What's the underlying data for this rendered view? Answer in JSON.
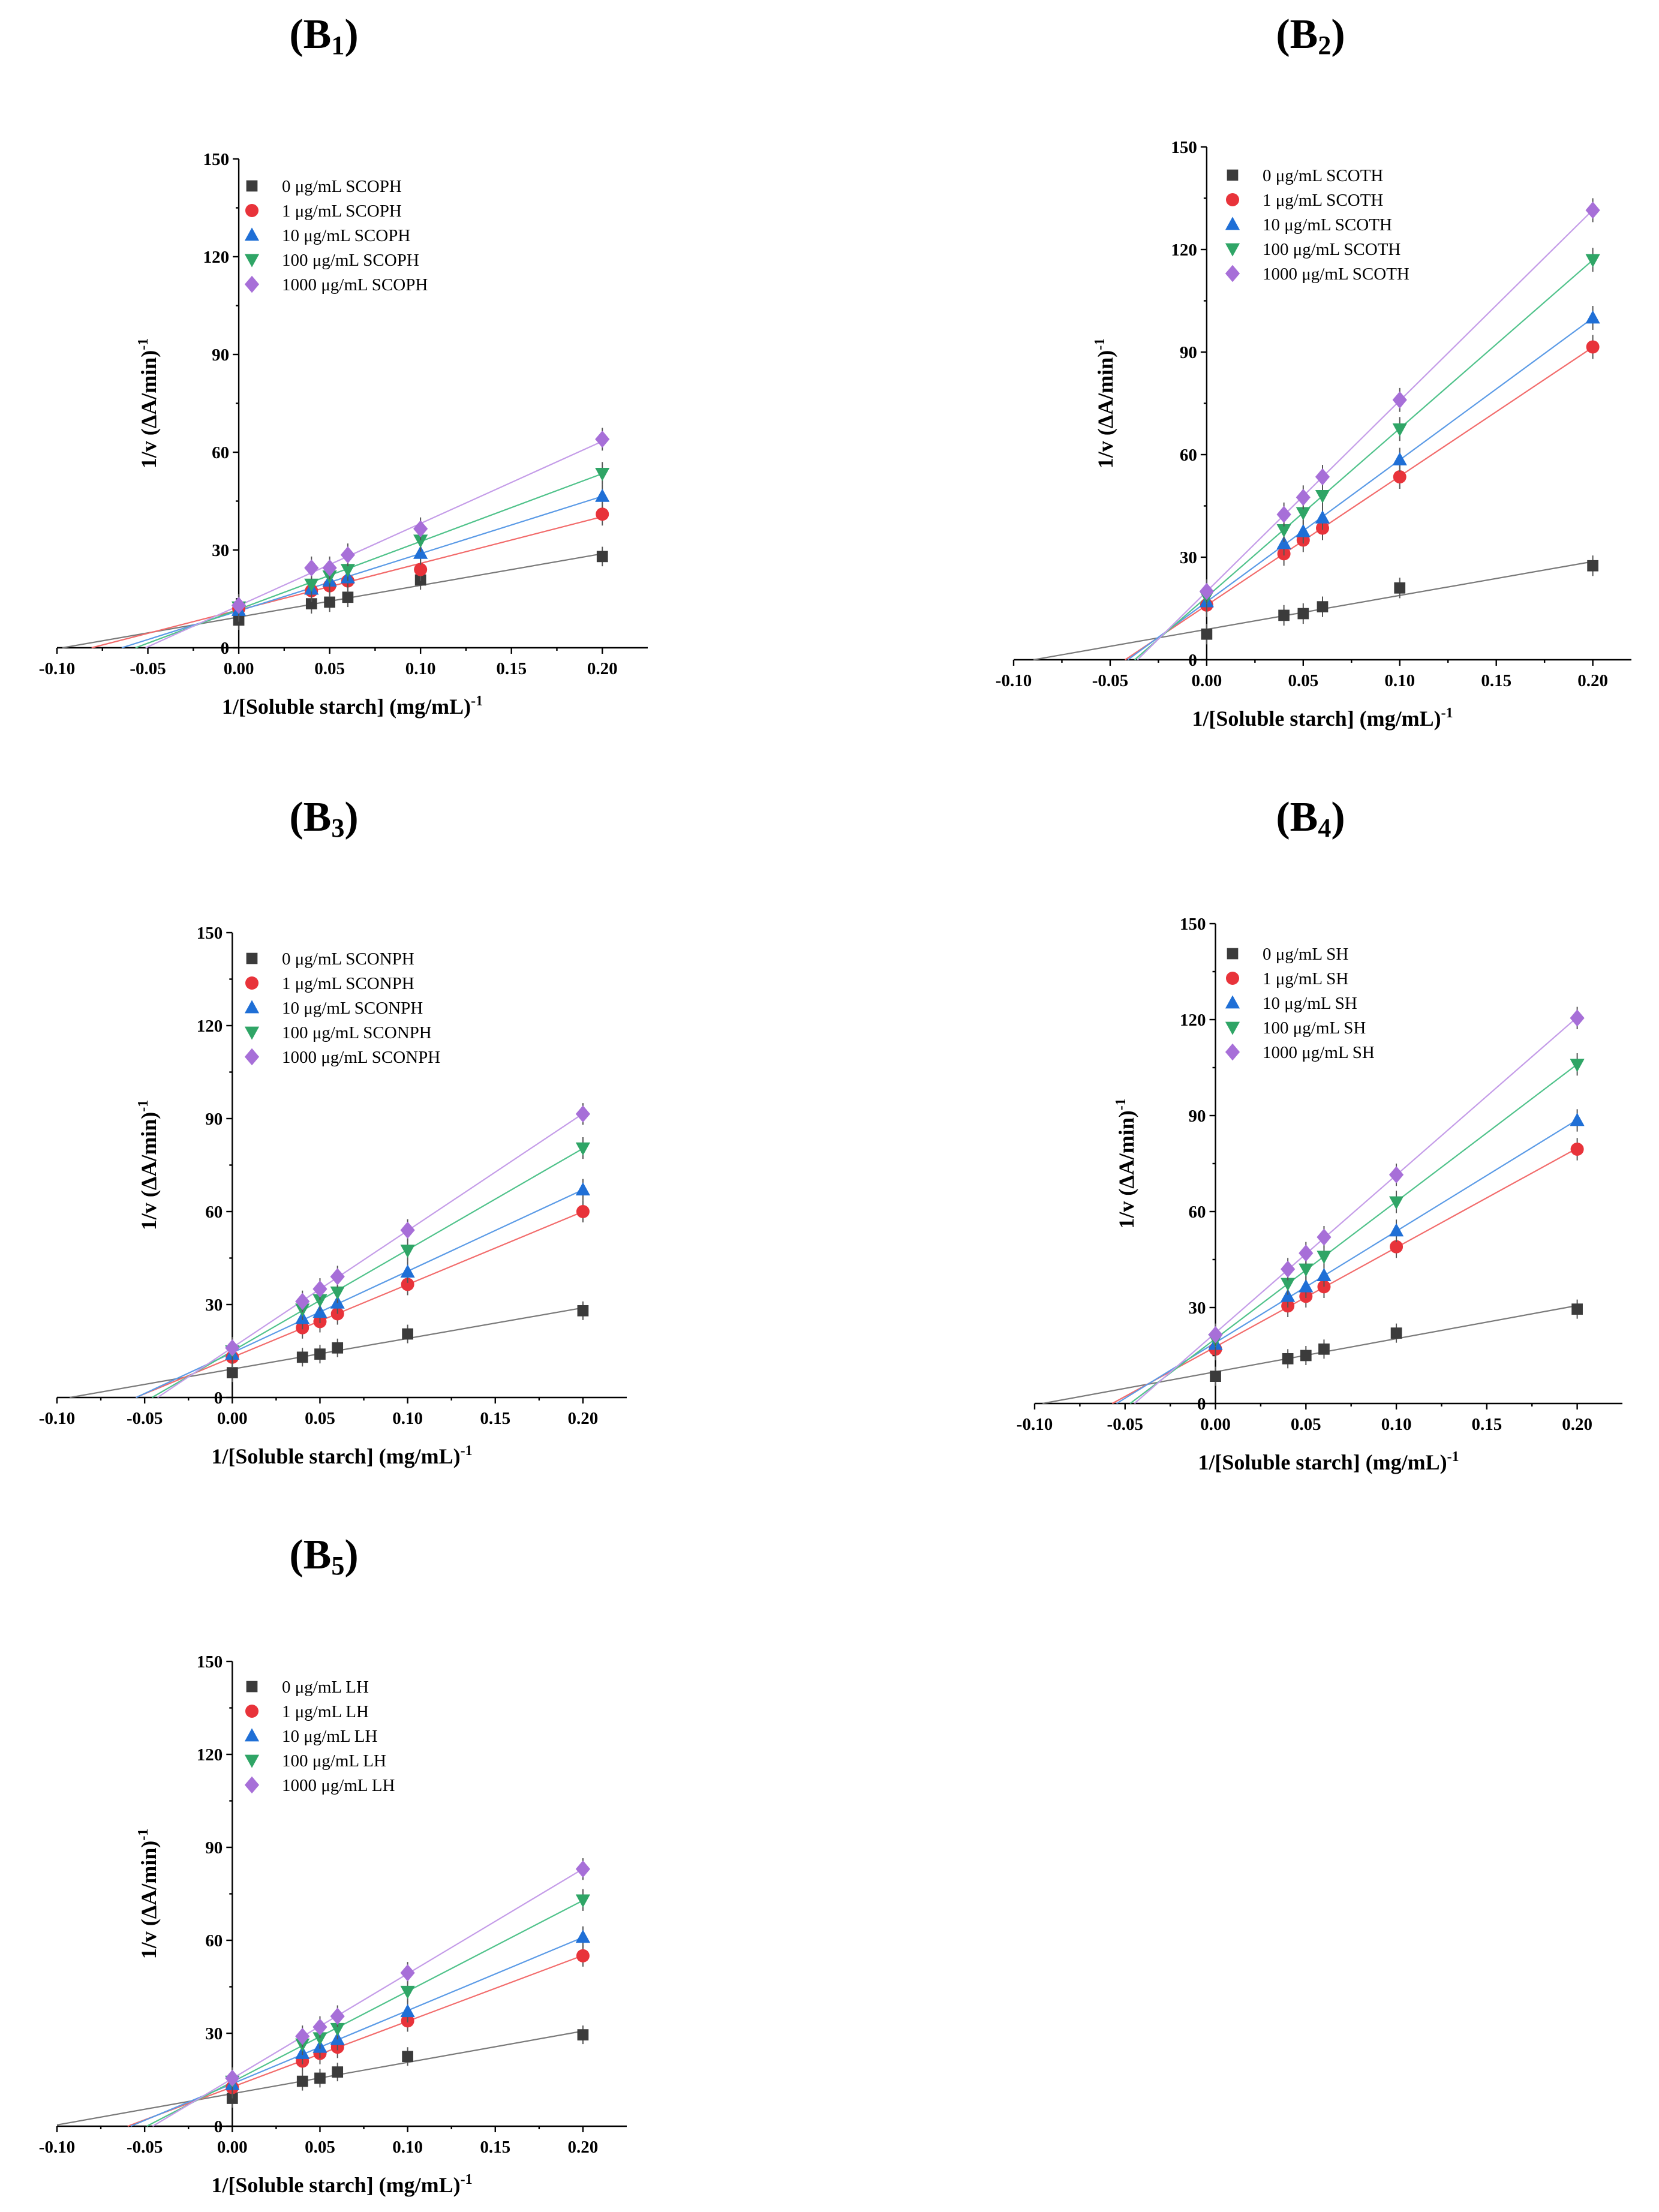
{
  "colors": {
    "series": [
      "#3b3b3b",
      "#e8333a",
      "#1f6fd6",
      "#2fa566",
      "#a76fd8"
    ],
    "fit": [
      "#7a7a7a",
      "#f26b6b",
      "#5a9ae6",
      "#4fc28a",
      "#c49ce8"
    ]
  },
  "chart_data": [
    {
      "type": "scatter",
      "panel_label": "(B1)",
      "title_main": "B",
      "title_sub": "1",
      "xlabel": "1/[Soluble starch] (mg/mL)",
      "xlabel_sup": "-1",
      "ylabel": "1/v (ΔA/min)",
      "ylabel_sup": "-1",
      "xlim": [
        -0.1,
        0.225
      ],
      "ylim": [
        0,
        150
      ],
      "xticks": [
        "-0.10",
        "-0.05",
        "0.00",
        "0.05",
        "0.10",
        "0.15",
        "0.20"
      ],
      "yticks": [
        "0",
        "30",
        "60",
        "90",
        "120",
        "150"
      ],
      "legend_position": "top-left",
      "x": [
        0.0,
        0.04,
        0.05,
        0.06,
        0.1,
        0.2
      ],
      "series": [
        {
          "name": "0 μg/mL SCOPH",
          "marker": "square",
          "values": [
            8.5,
            13.5,
            14.0,
            15.5,
            20.8,
            28.0
          ]
        },
        {
          "name": "1 μg/mL SCOPH",
          "marker": "circle",
          "values": [
            12.0,
            17.5,
            19.0,
            20.5,
            24.0,
            41.0
          ]
        },
        {
          "name": "10 μg/mL SCOPH",
          "marker": "triangle-up",
          "values": [
            11.5,
            18.0,
            20.5,
            21.5,
            29.0,
            46.5
          ]
        },
        {
          "name": "100 μg/mL SCOPH",
          "marker": "triangle-down",
          "values": [
            12.5,
            19.5,
            22.0,
            24.0,
            33.0,
            53.5
          ]
        },
        {
          "name": "1000 μg/mL SCOPH",
          "marker": "diamond",
          "values": [
            13.0,
            24.5,
            24.5,
            28.5,
            36.5,
            64.0
          ]
        }
      ]
    },
    {
      "type": "scatter",
      "panel_label": "(B2)",
      "title_main": "B",
      "title_sub": "2",
      "xlabel": "1/[Soluble starch] (mg/mL)",
      "xlabel_sup": "-1",
      "ylabel": "1/v (ΔA/min)",
      "ylabel_sup": "-1",
      "xlim": [
        -0.1,
        0.22
      ],
      "ylim": [
        0,
        150
      ],
      "xticks": [
        "-0.10",
        "-0.05",
        "0.00",
        "0.05",
        "0.10",
        "0.15",
        "0.20"
      ],
      "yticks": [
        "0",
        "30",
        "60",
        "90",
        "120",
        "150"
      ],
      "legend_position": "top-left",
      "x": [
        0.0,
        0.04,
        0.05,
        0.06,
        0.1,
        0.2
      ],
      "series": [
        {
          "name": "0 μg/mL SCOTH",
          "marker": "square",
          "values": [
            7.5,
            13.0,
            13.5,
            15.5,
            21.0,
            27.5
          ]
        },
        {
          "name": "1 μg/mL SCOTH",
          "marker": "circle",
          "values": [
            16.0,
            31.0,
            35.0,
            38.5,
            53.5,
            91.5
          ]
        },
        {
          "name": "10 μg/mL SCOTH",
          "marker": "triangle-up",
          "values": [
            17.0,
            34.0,
            37.5,
            41.5,
            58.5,
            100.0
          ]
        },
        {
          "name": "100 μg/mL SCOTH",
          "marker": "triangle-down",
          "values": [
            18.5,
            38.0,
            43.0,
            48.0,
            67.5,
            117.0
          ]
        },
        {
          "name": "1000 μg/mL SCOTH",
          "marker": "diamond",
          "values": [
            20.0,
            42.5,
            47.5,
            53.5,
            76.0,
            131.5
          ]
        }
      ]
    },
    {
      "type": "scatter",
      "panel_label": "(B3)",
      "title_main": "B",
      "title_sub": "3",
      "xlabel": "1/[Soluble starch] (mg/mL)",
      "xlabel_sup": "-1",
      "ylabel": "1/v (ΔA/min)",
      "ylabel_sup": "-1",
      "xlim": [
        -0.1,
        0.225
      ],
      "ylim": [
        0,
        150
      ],
      "xticks": [
        "-0.10",
        "-0.05",
        "0.00",
        "0.05",
        "0.10",
        "0.15",
        "0.20"
      ],
      "yticks": [
        "0",
        "30",
        "60",
        "90",
        "120",
        "150"
      ],
      "legend_position": "top-left",
      "x": [
        0.0,
        0.04,
        0.05,
        0.06,
        0.1,
        0.2
      ],
      "series": [
        {
          "name": "0 μg/mL SCONPH",
          "marker": "square",
          "values": [
            8.0,
            13.0,
            14.0,
            16.0,
            20.5,
            28.0
          ]
        },
        {
          "name": "1 μg/mL SCONPH",
          "marker": "circle",
          "values": [
            13.0,
            22.5,
            24.5,
            27.0,
            36.5,
            60.0
          ]
        },
        {
          "name": "10 μg/mL SCONPH",
          "marker": "triangle-up",
          "values": [
            14.0,
            25.5,
            27.5,
            30.5,
            40.5,
            67.0
          ]
        },
        {
          "name": "100 μg/mL SCONPH",
          "marker": "triangle-down",
          "values": [
            15.0,
            28.5,
            31.5,
            34.0,
            47.5,
            80.5
          ]
        },
        {
          "name": "1000 μg/mL SCONPH",
          "marker": "diamond",
          "values": [
            16.0,
            31.0,
            35.0,
            39.0,
            54.0,
            91.5
          ]
        }
      ]
    },
    {
      "type": "scatter",
      "panel_label": "(B4)",
      "title_main": "B",
      "title_sub": "4",
      "xlabel": "1/[Soluble starch] (mg/mL)",
      "xlabel_sup": "-1",
      "ylabel": "1/v (ΔA/min)",
      "ylabel_sup": "-1",
      "xlim": [
        -0.1,
        0.225
      ],
      "ylim": [
        0,
        150
      ],
      "xticks": [
        "-0.10",
        "-0.05",
        "0.00",
        "0.05",
        "0.10",
        "0.15",
        "0.20"
      ],
      "yticks": [
        "0",
        "30",
        "60",
        "90",
        "120",
        "150"
      ],
      "legend_position": "top-left",
      "x": [
        0.0,
        0.04,
        0.05,
        0.06,
        0.1,
        0.2
      ],
      "series": [
        {
          "name": "0 μg/mL SH",
          "marker": "square",
          "values": [
            8.5,
            14.0,
            15.0,
            17.0,
            22.0,
            29.5
          ]
        },
        {
          "name": "1 μg/mL SH",
          "marker": "circle",
          "values": [
            17.0,
            30.5,
            33.5,
            36.5,
            49.0,
            79.5
          ]
        },
        {
          "name": "10 μg/mL SH",
          "marker": "triangle-up",
          "values": [
            18.5,
            33.5,
            36.5,
            40.0,
            54.0,
            88.5
          ]
        },
        {
          "name": "100 μg/mL SH",
          "marker": "triangle-down",
          "values": [
            20.0,
            37.5,
            42.0,
            46.0,
            63.0,
            106.0
          ]
        },
        {
          "name": "1000 μg/mL SH",
          "marker": "diamond",
          "values": [
            21.5,
            42.0,
            47.0,
            52.0,
            71.5,
            120.5
          ]
        }
      ]
    },
    {
      "type": "scatter",
      "panel_label": "(B5)",
      "title_main": "B",
      "title_sub": "5",
      "xlabel": "1/[Soluble starch] (mg/mL)",
      "xlabel_sup": "-1",
      "ylabel": "1/v (ΔA/min)",
      "ylabel_sup": "-1",
      "xlim": [
        -0.1,
        0.225
      ],
      "ylim": [
        0,
        150
      ],
      "xticks": [
        "-0.10",
        "-0.05",
        "0.00",
        "0.05",
        "0.10",
        "0.15",
        "0.20"
      ],
      "yticks": [
        "0",
        "30",
        "60",
        "90",
        "120",
        "150"
      ],
      "legend_position": "top-left",
      "x": [
        0.0,
        0.04,
        0.05,
        0.06,
        0.1,
        0.2
      ],
      "series": [
        {
          "name": "0 μg/mL LH",
          "marker": "square",
          "values": [
            9.0,
            14.5,
            15.5,
            17.5,
            22.5,
            29.5
          ]
        },
        {
          "name": "1 μg/mL LH",
          "marker": "circle",
          "values": [
            12.5,
            21.0,
            23.5,
            25.5,
            34.0,
            55.0
          ]
        },
        {
          "name": "10 μg/mL LH",
          "marker": "triangle-up",
          "values": [
            13.5,
            23.5,
            25.5,
            28.0,
            37.0,
            61.0
          ]
        },
        {
          "name": "100 μg/mL LH",
          "marker": "triangle-down",
          "values": [
            14.5,
            26.5,
            28.5,
            31.5,
            43.5,
            73.0
          ]
        },
        {
          "name": "1000 μg/mL LH",
          "marker": "diamond",
          "values": [
            15.5,
            29.0,
            32.0,
            35.5,
            49.5,
            83.0
          ]
        }
      ]
    }
  ]
}
